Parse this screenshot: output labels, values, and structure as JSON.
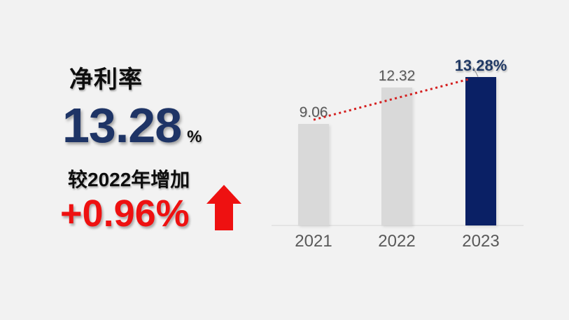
{
  "page": {
    "background": "#f2f2f2"
  },
  "colors": {
    "kpi_navy": "#1e3466",
    "label_navy": "#1f3864",
    "red": "#ee1111",
    "trend_red": "#d42020",
    "bar_gray": "#d9d9d9",
    "bar_navy": "#0a2065",
    "text_gray": "#595959",
    "axis_gray": "#e4e4e4",
    "leader_gray": "#999999",
    "black": "#0e0e0e"
  },
  "left_panel": {
    "title": "净利率",
    "value": "13.28",
    "value_unit": "%",
    "comparison_label": "较2022年增加",
    "delta": "+0.96%",
    "arrow_icon": "up-arrow"
  },
  "chart_data": {
    "type": "bar",
    "title": "",
    "categories": [
      "2021",
      "2022",
      "2023"
    ],
    "values": [
      9.06,
      12.32,
      13.28
    ],
    "value_labels": [
      "9.06",
      "12.32",
      "13.28%"
    ],
    "highlight_index": 2,
    "ylim": [
      0,
      15
    ],
    "grid": false,
    "legend": "none",
    "trendline": {
      "style": "dotted",
      "color": "#d42020",
      "from_category": "2021",
      "to_category": "2023"
    }
  }
}
